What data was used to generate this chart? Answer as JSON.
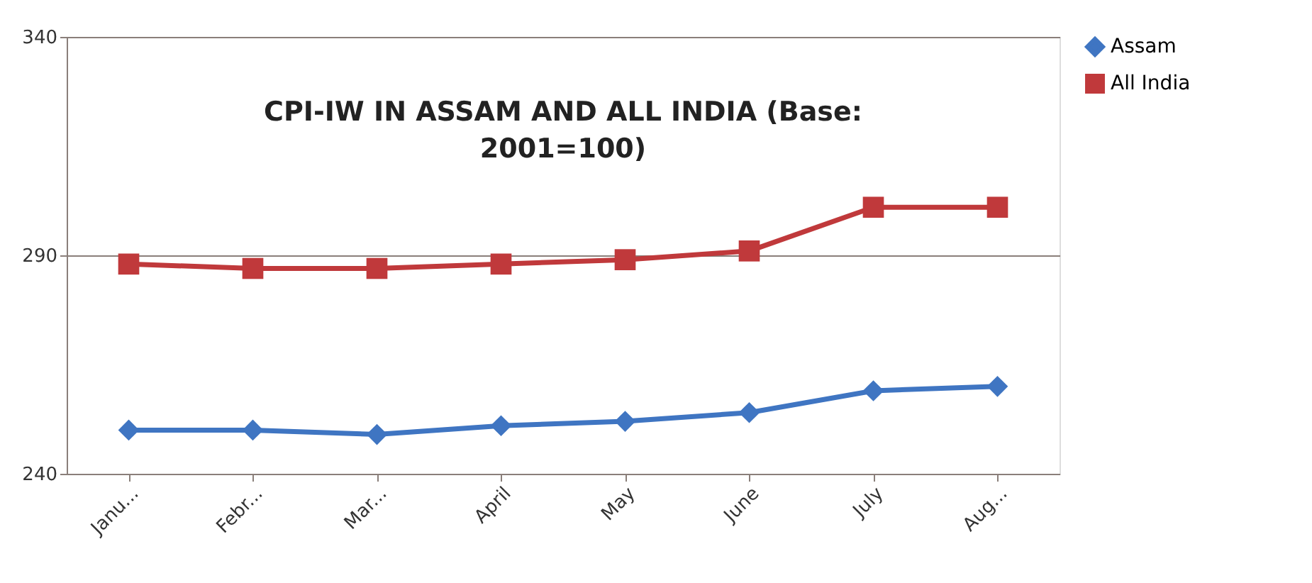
{
  "chart_data": {
    "type": "line",
    "title": "CPI-IW IN ASSAM AND ALL INDIA (Base: 2001=100)",
    "categories": [
      "Janu...",
      "Febr...",
      "Mar...",
      "April",
      "May",
      "June",
      "July",
      "Aug..."
    ],
    "series": [
      {
        "name": "Assam",
        "color": "#3f75c2",
        "marker": "diamond",
        "values": [
          250,
          250,
          249,
          251,
          252,
          254,
          259,
          260
        ]
      },
      {
        "name": "All India",
        "color": "#c0393b",
        "marker": "square",
        "values": [
          288,
          287,
          287,
          288,
          289,
          291,
          301,
          301
        ]
      }
    ],
    "ylim": [
      240,
      340
    ],
    "yticks": [
      240,
      290,
      340
    ],
    "grid": "y",
    "legend": "right",
    "line_style": "solid"
  }
}
